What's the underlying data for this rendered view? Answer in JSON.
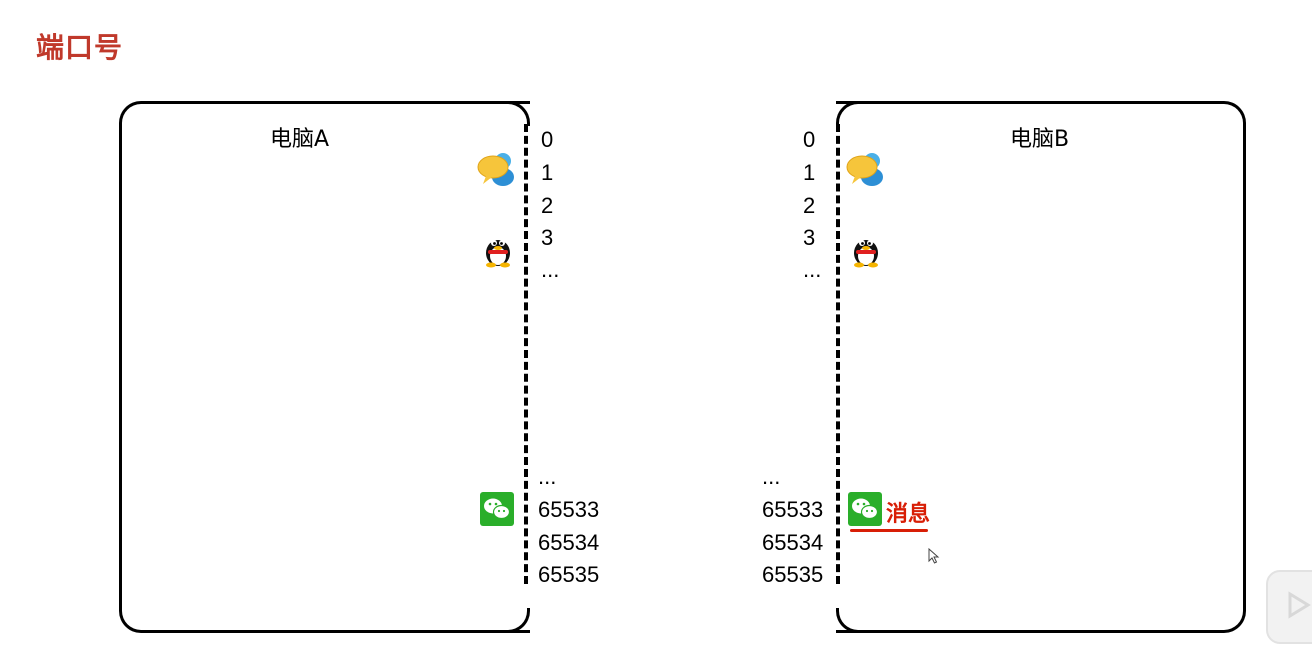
{
  "title": "端口号",
  "computer_a": {
    "label": "电脑A",
    "ports_top": [
      "0",
      "1",
      "2",
      "3",
      "..."
    ],
    "ports_bottom": [
      "...",
      "65533",
      "65534",
      "65535"
    ],
    "icons": [
      "chat-bubbles-icon",
      "qq-penguin-icon",
      "wechat-icon"
    ]
  },
  "computer_b": {
    "label": "电脑B",
    "ports_top": [
      "0",
      "1",
      "2",
      "3",
      "..."
    ],
    "ports_bottom": [
      "...",
      "65533",
      "65534",
      "65535"
    ],
    "icons": [
      "chat-bubbles-icon",
      "qq-penguin-icon",
      "wechat-icon"
    ],
    "message_label": "消息"
  },
  "colors": {
    "title": "#c0392b",
    "message": "#d81e06",
    "wechat": "#2aae2a"
  }
}
